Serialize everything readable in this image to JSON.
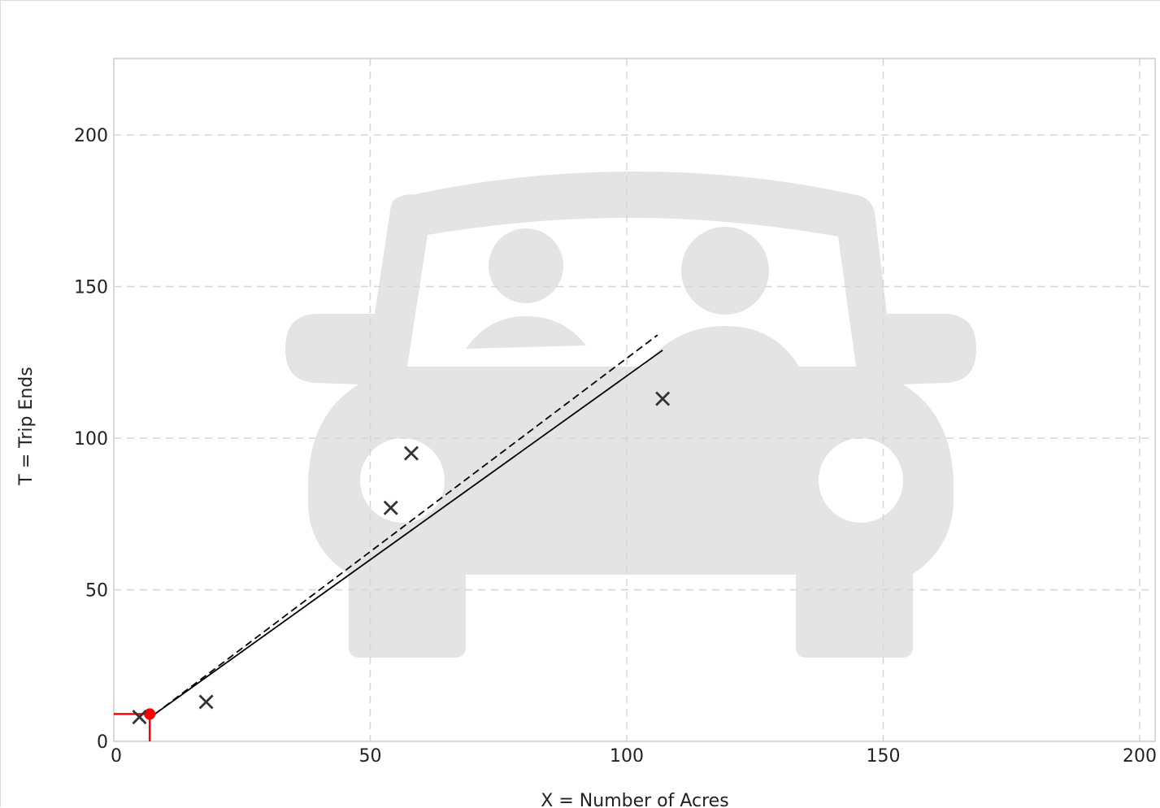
{
  "chart_data": {
    "type": "scatter",
    "title": "",
    "xlabel": "X = Number of Acres",
    "ylabel": "T = Trip Ends",
    "xlim": [
      0,
      200
    ],
    "ylim": [
      0,
      225
    ],
    "x_ticks": [
      0,
      50,
      100,
      150,
      200
    ],
    "y_ticks": [
      0,
      50,
      100,
      150,
      200
    ],
    "x_tick_labels": [
      "0",
      "50",
      "100",
      "150",
      "200"
    ],
    "y_tick_labels": [
      "0",
      "50",
      "100",
      "150",
      "200"
    ],
    "grid": true,
    "legend": "none",
    "background_icon": "car-with-passengers-icon",
    "series": [
      {
        "kind": "points",
        "marker": "x",
        "x": [
          5,
          18,
          54,
          58,
          107
        ],
        "y": [
          8,
          13,
          77,
          95,
          113
        ]
      },
      {
        "kind": "fitted-curve",
        "line_style": "solid",
        "x": [
          8,
          107
        ],
        "y": [
          9,
          129
        ]
      },
      {
        "kind": "average-rate",
        "line_style": "dashed",
        "x": [
          8,
          106
        ],
        "y": [
          9,
          134
        ]
      },
      {
        "kind": "selected-point",
        "marker": "dot",
        "x": [
          7
        ],
        "y": [
          9
        ]
      }
    ]
  },
  "colors": {
    "points": "#333333",
    "lines": "#000000",
    "selected": "#ff0000",
    "grid": "#d6d6d6",
    "plot_border": "#cccccc",
    "watermark": "#e4e4e4"
  }
}
